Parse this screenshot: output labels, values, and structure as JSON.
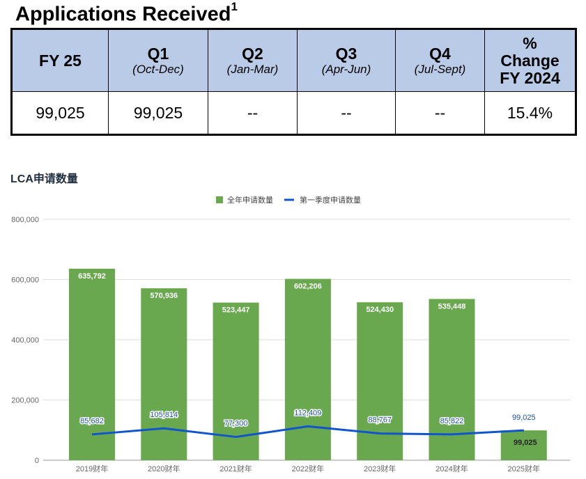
{
  "table": {
    "title": "Applications Received",
    "footnote": "1",
    "headers": [
      {
        "main": "FY 25",
        "sub": ""
      },
      {
        "main": "Q1",
        "sub": "(Oct-Dec)"
      },
      {
        "main": "Q2",
        "sub": "(Jan-Mar)"
      },
      {
        "main": "Q3",
        "sub": "(Apr-Jun)"
      },
      {
        "main": "Q4",
        "sub": "(Jul-Sept)"
      },
      {
        "main": "% Change FY 2024",
        "sub": ""
      }
    ],
    "row": [
      "99,025",
      "99,025",
      "--",
      "--",
      "--",
      "15.4%"
    ]
  },
  "chart_data": {
    "type": "bar",
    "title": "LCA申请数量",
    "categories": [
      "2019财年",
      "2020财年",
      "2021财年",
      "2022财年",
      "2023财年",
      "2024财年",
      "2025财年"
    ],
    "series": [
      {
        "name": "全年申请数量",
        "type": "bar",
        "color": "#6aa84f",
        "values": [
          635792,
          570936,
          523447,
          602206,
          524430,
          535448,
          99025
        ],
        "labels": [
          "635,792",
          "570,936",
          "523,447",
          "602,206",
          "524,430",
          "535,448",
          "99,025"
        ]
      },
      {
        "name": "第一季度申请数量",
        "type": "line",
        "color": "#1155cc",
        "values": [
          85682,
          105814,
          77300,
          112409,
          88767,
          85822,
          99025
        ],
        "labels": [
          "85,682",
          "105,814",
          "77,300",
          "112,409",
          "88,767",
          "85,822",
          "99,025"
        ]
      }
    ],
    "yticks": [
      "0",
      "200,000",
      "400,000",
      "600,000",
      "800,000"
    ],
    "ylim": [
      0,
      800000
    ],
    "grid": true,
    "legend": "top-center"
  }
}
